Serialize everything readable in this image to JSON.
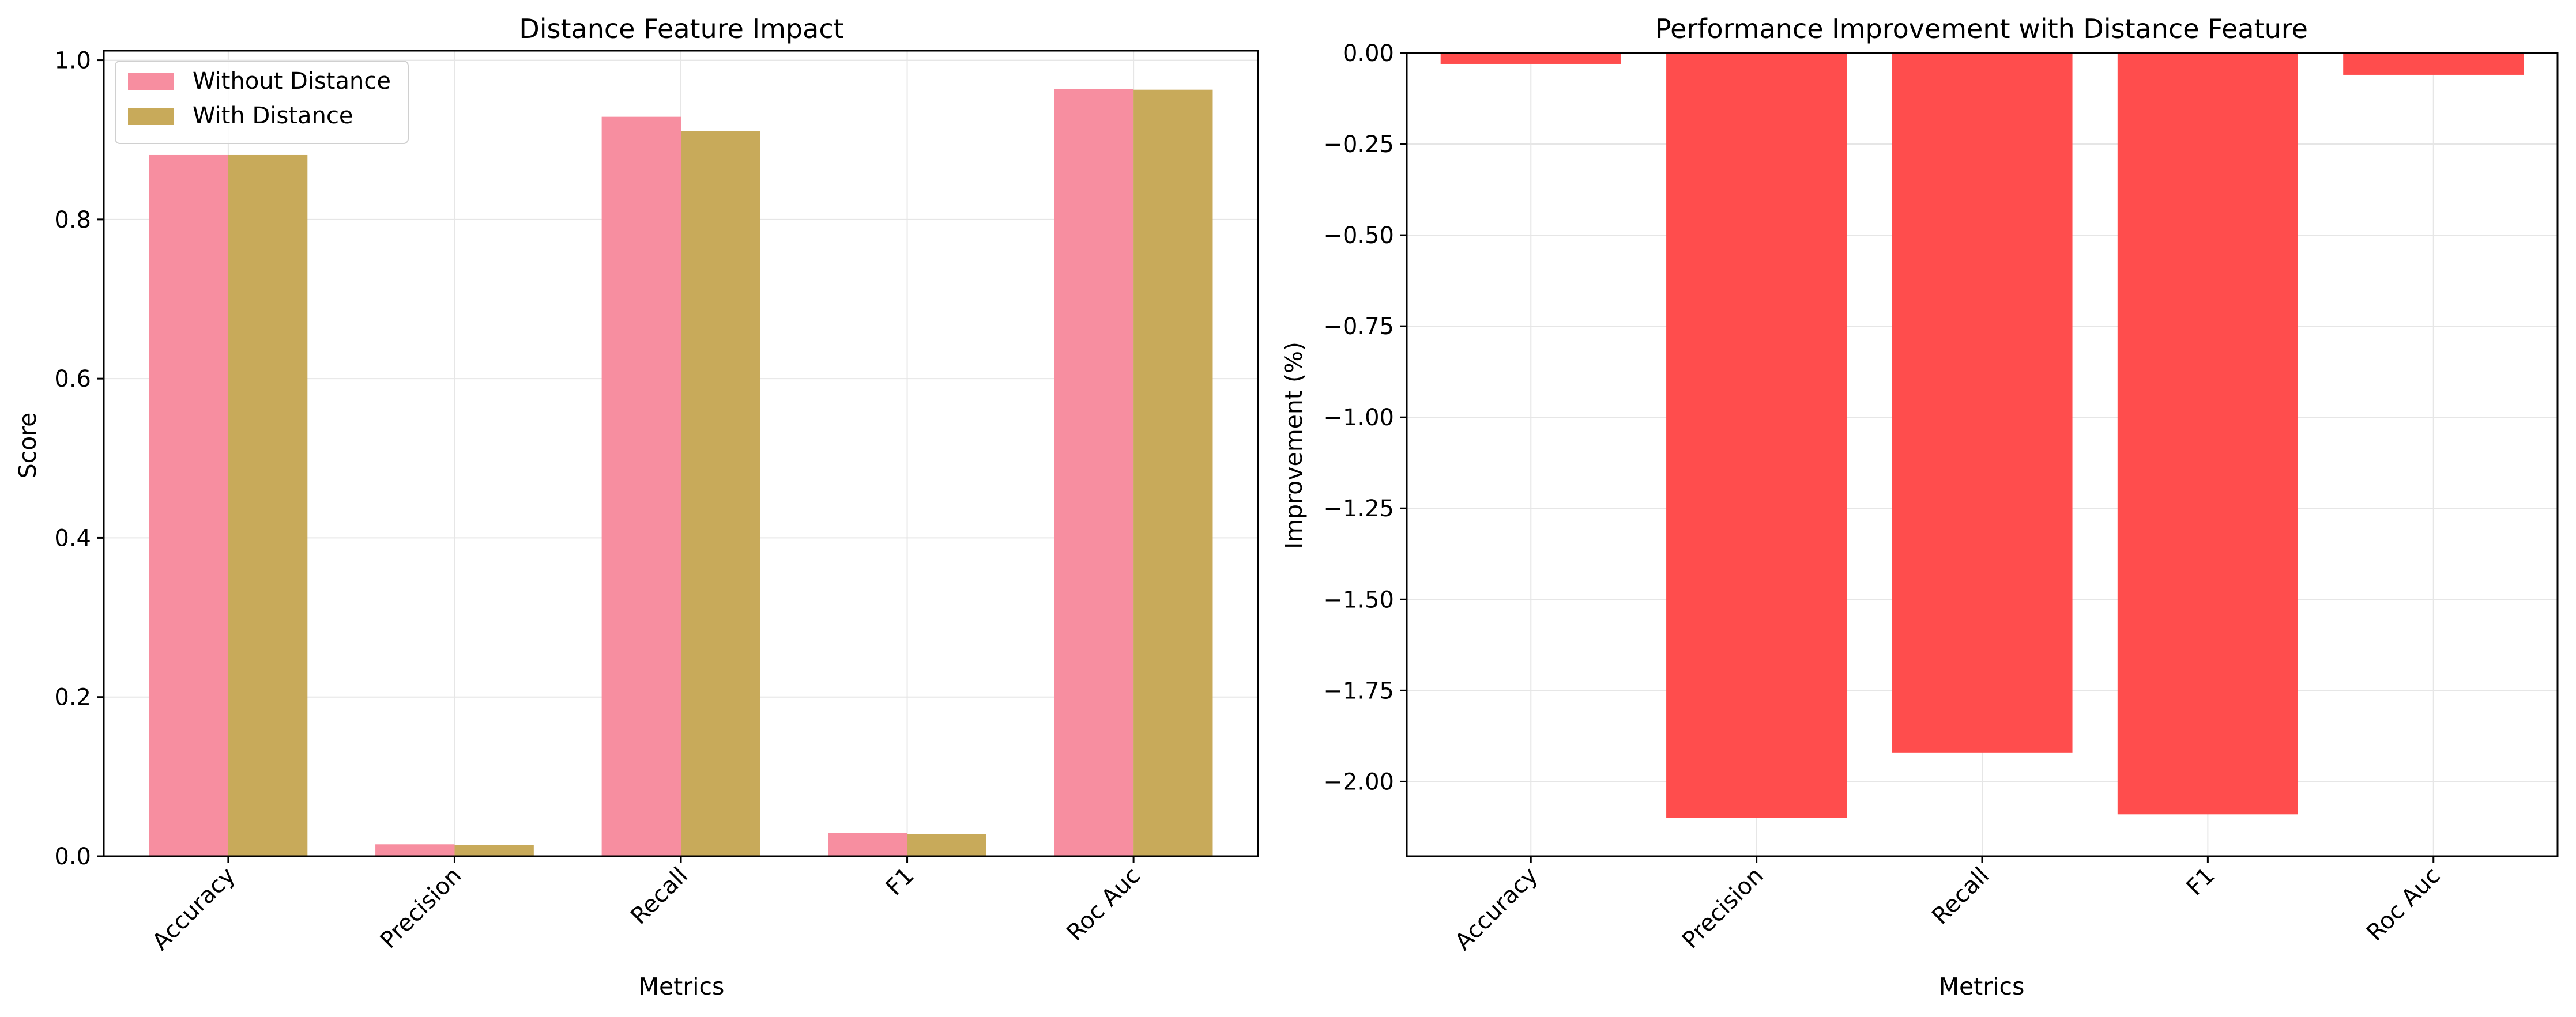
{
  "colors": {
    "without_distance": "#F78EA0",
    "with_distance": "#C8AA5A",
    "improvement": "#FF4D4D",
    "grid": "#E6E6E6",
    "axis": "#000000"
  },
  "chart_data": [
    {
      "type": "bar",
      "title": "Distance Feature Impact",
      "xlabel": "Metrics",
      "ylabel": "Score",
      "categories": [
        "Accuracy",
        "Precision",
        "Recall",
        "F1",
        "Roc Auc"
      ],
      "series": [
        {
          "name": "Without Distance",
          "values": [
            0.881,
            0.015,
            0.929,
            0.029,
            0.964
          ]
        },
        {
          "name": "With Distance",
          "values": [
            0.881,
            0.014,
            0.911,
            0.028,
            0.963
          ]
        }
      ],
      "ylim": [
        0,
        1.0
      ],
      "yticks": [
        0.0,
        0.2,
        0.4,
        0.6,
        0.8,
        1.0
      ],
      "ytick_labels": [
        "0.0",
        "0.2",
        "0.4",
        "0.6",
        "0.8",
        "1.0"
      ],
      "grid": true,
      "legend": "top-left"
    },
    {
      "type": "bar",
      "title": "Performance Improvement with Distance Feature",
      "xlabel": "Metrics",
      "ylabel": "Improvement (%)",
      "categories": [
        "Accuracy",
        "Precision",
        "Recall",
        "F1",
        "Roc Auc"
      ],
      "values": [
        -0.03,
        -2.1,
        -1.92,
        -2.09,
        -0.06
      ],
      "ylim": [
        -2.2,
        0.0
      ],
      "yticks": [
        0.0,
        -0.25,
        -0.5,
        -0.75,
        -1.0,
        -1.25,
        -1.5,
        -1.75,
        -2.0
      ],
      "ytick_labels": [
        "0.00",
        "−0.25",
        "−0.50",
        "−0.75",
        "−1.00",
        "−1.25",
        "−1.50",
        "−1.75",
        "−2.00"
      ],
      "grid": true
    }
  ]
}
